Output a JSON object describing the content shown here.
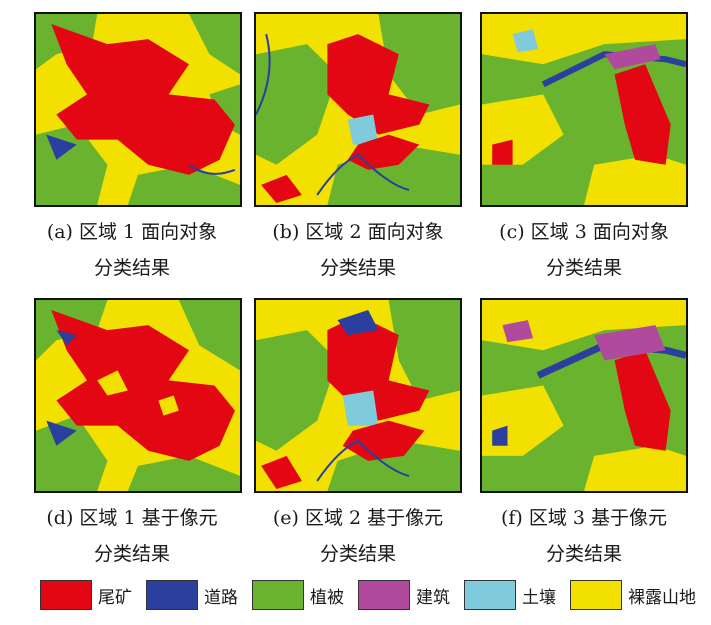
{
  "panels": [
    {
      "label": "(a) 区域 1 面向对象",
      "label2": "分类结果"
    },
    {
      "label": "(b) 区域 2 面向对象",
      "label2": "分类结果"
    },
    {
      "label": "(c) 区域 3 面向对象",
      "label2": "分类结果"
    },
    {
      "label": "(d) 区域 1 基于像元",
      "label2": "分类结果"
    },
    {
      "label": "(e) 区域 2 基于像元",
      "label2": "分类结果"
    },
    {
      "label": "(f) 区域 3 基于像元",
      "label2": "分类结果"
    }
  ],
  "legend": [
    {
      "label": "尾矿",
      "color": "#e30613"
    },
    {
      "label": "道路",
      "color": "#2b3f9e"
    },
    {
      "label": "植被",
      "color": "#6ab32e"
    },
    {
      "label": "建筑",
      "color": "#b04a9c"
    },
    {
      "label": "土壤",
      "color": "#7fcbdc"
    },
    {
      "label": "裸露山地",
      "color": "#f2e100"
    }
  ]
}
